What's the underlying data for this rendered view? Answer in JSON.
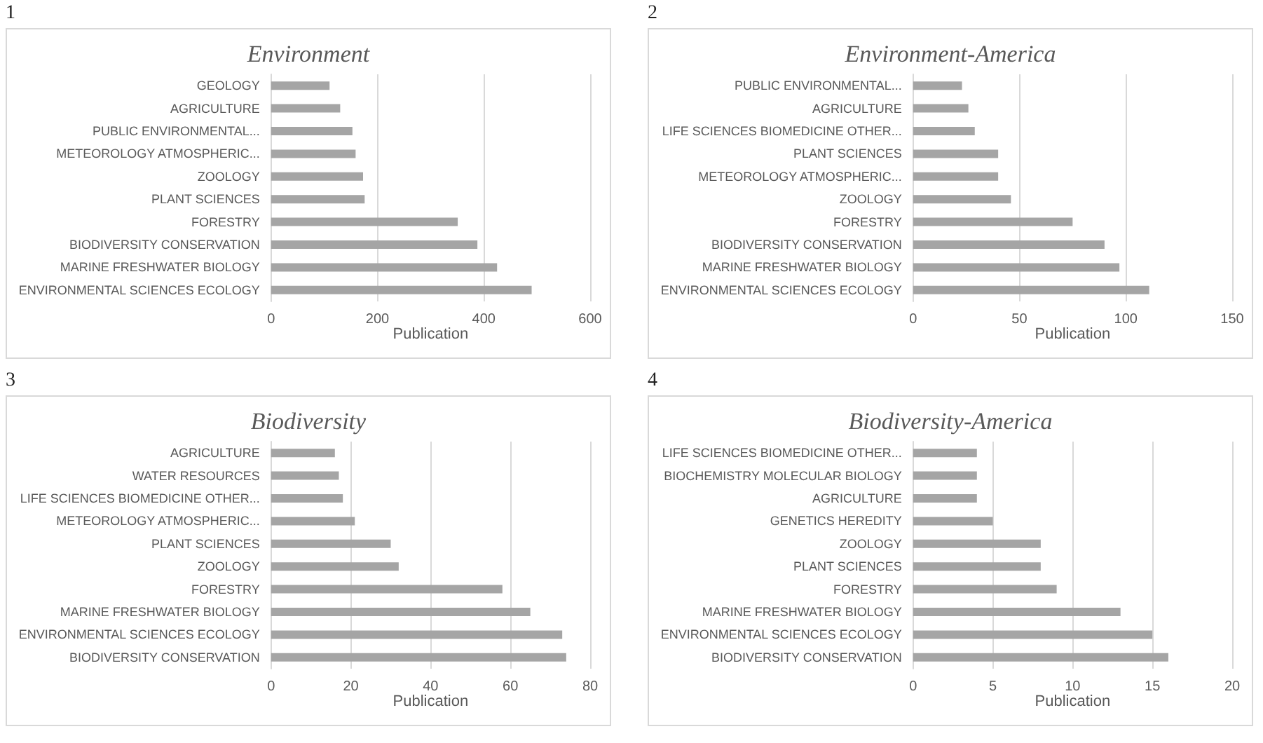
{
  "chart_data": [
    {
      "type": "bar",
      "orientation": "horizontal",
      "title": "Environment",
      "xlabel": "Publication",
      "annotations": [
        "1"
      ],
      "categories": [
        "GEOLOGY",
        "AGRICULTURE",
        "PUBLIC ENVIRONMENTAL...",
        "METEOROLOGY ATMOSPHERIC...",
        "ZOOLOGY",
        "PLANT SCIENCES",
        "FORESTRY",
        "BIODIVERSITY CONSERVATION",
        "MARINE FRESHWATER BIOLOGY",
        "ENVIRONMENTAL SCIENCES ECOLOGY"
      ],
      "values": [
        110,
        130,
        153,
        159,
        173,
        176,
        351,
        388,
        425,
        490
      ],
      "color": "#a5a5a5",
      "xlim": [
        0,
        600
      ],
      "xticks": [
        0,
        200,
        400,
        600
      ],
      "grid": "x"
    },
    {
      "type": "bar",
      "orientation": "horizontal",
      "title": "Environment-America",
      "xlabel": "Publication",
      "annotations": [
        "2"
      ],
      "categories": [
        "PUBLIC ENVIRONMENTAL...",
        "AGRICULTURE",
        "LIFE SCIENCES BIOMEDICINE OTHER...",
        "PLANT SCIENCES",
        "METEOROLOGY ATMOSPHERIC...",
        "ZOOLOGY",
        "FORESTRY",
        "BIODIVERSITY CONSERVATION",
        "MARINE FRESHWATER BIOLOGY",
        "ENVIRONMENTAL SCIENCES ECOLOGY"
      ],
      "values": [
        23,
        26,
        29,
        40,
        40,
        46,
        75,
        90,
        97,
        111
      ],
      "color": "#a5a5a5",
      "xlim": [
        0,
        150
      ],
      "xticks": [
        0,
        50,
        100,
        150
      ],
      "grid": "x"
    },
    {
      "type": "bar",
      "orientation": "horizontal",
      "title": "Biodiversity",
      "xlabel": "Publication",
      "annotations": [
        "3"
      ],
      "categories": [
        "AGRICULTURE",
        "WATER RESOURCES",
        "LIFE SCIENCES BIOMEDICINE OTHER...",
        "METEOROLOGY ATMOSPHERIC...",
        "PLANT SCIENCES",
        "ZOOLOGY",
        "FORESTRY",
        "MARINE FRESHWATER BIOLOGY",
        "ENVIRONMENTAL SCIENCES ECOLOGY",
        "BIODIVERSITY CONSERVATION"
      ],
      "values": [
        16,
        17,
        18,
        21,
        30,
        32,
        58,
        65,
        73,
        74
      ],
      "color": "#a5a5a5",
      "xlim": [
        0,
        80
      ],
      "xticks": [
        0,
        20,
        40,
        60,
        80
      ],
      "grid": "x"
    },
    {
      "type": "bar",
      "orientation": "horizontal",
      "title": "Biodiversity-America",
      "xlabel": "Publication",
      "annotations": [
        "4"
      ],
      "categories": [
        "LIFE SCIENCES BIOMEDICINE OTHER...",
        "BIOCHEMISTRY MOLECULAR BIOLOGY",
        "AGRICULTURE",
        "GENETICS HEREDITY",
        "ZOOLOGY",
        "PLANT SCIENCES",
        "FORESTRY",
        "MARINE FRESHWATER BIOLOGY",
        "ENVIRONMENTAL SCIENCES ECOLOGY",
        "BIODIVERSITY CONSERVATION"
      ],
      "values": [
        4,
        4,
        4,
        5,
        8,
        8,
        9,
        13,
        15,
        16
      ],
      "color": "#a5a5a5",
      "xlim": [
        0,
        20
      ],
      "xticks": [
        0,
        5,
        10,
        15,
        20
      ],
      "grid": "x"
    }
  ]
}
